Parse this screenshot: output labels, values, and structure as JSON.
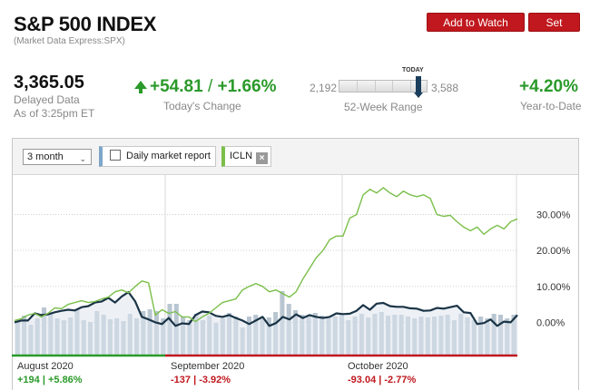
{
  "header": {
    "title": "S&P 500 INDEX",
    "subtitle": "(Market Data Express:SPX)",
    "watch_label": "Add to Watch List",
    "alert_label": "Set Alert"
  },
  "quote": {
    "price": "3,365.05",
    "delayed_line1": "Delayed Data",
    "delayed_line2": "As of 3:25pm ET",
    "change_points": "+54.81",
    "change_sep": "/",
    "change_percent": "+1.66%",
    "change_label": "Today's Change",
    "range_today": "TODAY",
    "range_low": "2,192",
    "range_high": "3,588",
    "range_label": "52-Week Range",
    "range_position": 0.9,
    "ytd": "+4.20%",
    "ytd_label": "Year-to-Date"
  },
  "colors": {
    "accent_red": "#c0181e",
    "positive": "#2a9a2a",
    "negative": "#c0181e",
    "spx_line": "#1a3446",
    "icln_line": "#7bbf4a",
    "volume_bar": "#b9c6d2"
  },
  "controls": {
    "range_select": "3 month",
    "daily_report_label": "Daily market report",
    "compare_symbol": "ICLN",
    "compare_remove_icon": "close-icon"
  },
  "months": [
    {
      "label": "August 2020",
      "change": "+194 | +5.86%",
      "direction": "pos"
    },
    {
      "label": "September 2020",
      "change": "-137 | -3.92%",
      "direction": "neg"
    },
    {
      "label": "October 2020",
      "change": "-93.04 | -2.77%",
      "direction": "neg"
    }
  ],
  "chart_data": {
    "type": "line",
    "ytick_labels": [
      "30.00%",
      "20.00%",
      "10.00%",
      "0.00%"
    ],
    "yticks": [
      30,
      20,
      10,
      0
    ],
    "ylim": [
      -9,
      41
    ],
    "grid": true,
    "series": [
      {
        "name": "S&P 500 INDEX",
        "values": [
          0,
          0.5,
          0.5,
          2.5,
          2,
          2.2,
          2.8,
          3.2,
          3.5,
          3.3,
          4.2,
          4.5,
          5.5,
          5.8,
          6.8,
          5.5,
          7.2,
          8.4,
          5.8,
          1.5,
          0.8,
          0,
          -0.5,
          1.2,
          -1,
          -0.3,
          -0.5,
          2,
          3,
          2.8,
          1.8,
          1.5,
          2,
          1.2,
          0.5,
          -0.5,
          0.5,
          1.5,
          -1,
          -0.2,
          1.5,
          0.8,
          2.2,
          1.2,
          2,
          1.5,
          1.2,
          1.5,
          2.5,
          2.3,
          2.4,
          3.2,
          4.8,
          3.5,
          5.2,
          5.4,
          4.5,
          4.3,
          4.3,
          3.9,
          3.8,
          3.2,
          3.3,
          4,
          3.8,
          4.2,
          4.6,
          2.8,
          2.6,
          -0.5,
          -0.2,
          0.8,
          -1,
          0.2,
          0,
          2
        ],
        "color": "#1a3446"
      },
      {
        "name": "ICLN",
        "values": [
          0.5,
          1,
          2,
          2.5,
          1.5,
          2.5,
          4,
          3.8,
          5,
          5.5,
          6,
          5.5,
          5.8,
          6.5,
          7,
          8.5,
          9,
          8.2,
          10,
          11.5,
          11,
          2,
          3.5,
          2.5,
          3,
          1.5,
          1.5,
          0.2,
          1.5,
          2.5,
          4,
          5.5,
          6,
          6.5,
          9,
          10,
          10.8,
          10,
          8.5,
          9,
          8,
          7,
          8.5,
          12,
          15,
          18,
          20,
          23,
          24,
          24,
          29,
          30,
          35.5,
          37,
          36,
          37.5,
          36,
          35,
          36.5,
          35.5,
          35,
          35.5,
          34.5,
          30,
          29.5,
          29.8,
          28,
          26.5,
          25.5,
          26.5,
          24.5,
          26,
          27,
          26,
          28,
          28.8
        ],
        "color": "#7bbf4a"
      }
    ],
    "volume": [
      0.38,
      0.43,
      0.33,
      0.4,
      0.52,
      0.45,
      0.4,
      0.38,
      0.41,
      0.5,
      0.38,
      0.36,
      0.48,
      0.44,
      0.39,
      0.4,
      0.37,
      0.45,
      0.4,
      0.48,
      0.5,
      0.48,
      0.4,
      0.56,
      0.56,
      0.42,
      0.38,
      0.45,
      0.38,
      0.43,
      0.35,
      0.4,
      0.46,
      0.42,
      0.3,
      0.42,
      0.44,
      0.41,
      0.41,
      0.47,
      0.7,
      0.56,
      0.49,
      0.44,
      0.42,
      0.46,
      0.43,
      0.4,
      0.42,
      0.44,
      0.38,
      0.42,
      0.45,
      0.41,
      0.45,
      0.47,
      0.43,
      0.44,
      0.44,
      0.42,
      0.4,
      0.42,
      0.41,
      0.42,
      0.43,
      0.44,
      0.38,
      0.45,
      0.41,
      0.38,
      0.42,
      0.4,
      0.45,
      0.44,
      0.4,
      0.44
    ]
  }
}
